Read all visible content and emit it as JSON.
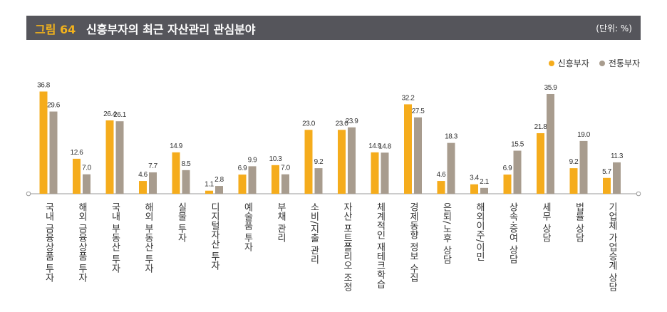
{
  "header": {
    "figure_label": "그림 64",
    "title": "신흥부자의 최근 자산관리 관심분야",
    "unit": "(단위: %)"
  },
  "colors": {
    "series_a": "#f5ac1c",
    "series_b": "#a89c8e",
    "header_bg": "#55555b"
  },
  "chart_data": {
    "type": "bar",
    "legend_position": "top-right",
    "grid": false,
    "ylim": [
      0,
      40
    ],
    "categories": [
      "국내 금융상품 투자",
      "해외 금융상품 투자",
      "국내 부동산 투자",
      "해외 부동산 투자",
      "실물 투자",
      "디지털자산 투자",
      "예술품 투자",
      "부채 관리",
      "소비/지출 관리",
      "자산 포트폴리오 조정",
      "체계적인 재테크학습",
      "경제동향 정보 수집",
      "은퇴/노후 상담",
      "해외이주/이민",
      "상속·증여 상담",
      "세무 상담",
      "법률 상담",
      "기업체 가업승계 상담"
    ],
    "series": [
      {
        "name": "신흥부자",
        "values": [
          36.8,
          12.6,
          26.4,
          4.6,
          14.9,
          1.1,
          6.9,
          10.3,
          23.0,
          23.0,
          14.9,
          32.2,
          4.6,
          3.4,
          6.9,
          21.8,
          9.2,
          5.7
        ]
      },
      {
        "name": "전통부자",
        "values": [
          29.6,
          7.0,
          26.1,
          7.7,
          8.5,
          2.8,
          9.9,
          7.0,
          9.2,
          23.9,
          14.8,
          27.5,
          18.3,
          2.1,
          15.5,
          35.9,
          19.0,
          11.3
        ]
      }
    ],
    "value_labels": [
      [
        "36.8",
        "12.6",
        "26.4",
        "4.6",
        "14.9",
        "1.1",
        "6.9",
        "10.3",
        "23.0",
        "23.0",
        "14.9",
        "32.2",
        "4.6",
        "3.4",
        "6.9",
        "21.8",
        "9.2",
        "5.7"
      ],
      [
        "29.6",
        "7.0",
        "26.1",
        "7.7",
        "8.5",
        "2.8",
        "9.9",
        "7.0",
        "9.2",
        "23.9",
        "14.8",
        "27.5",
        "18.3",
        "2.1",
        "15.5",
        "35.9",
        "19.0",
        "11.3"
      ]
    ]
  }
}
